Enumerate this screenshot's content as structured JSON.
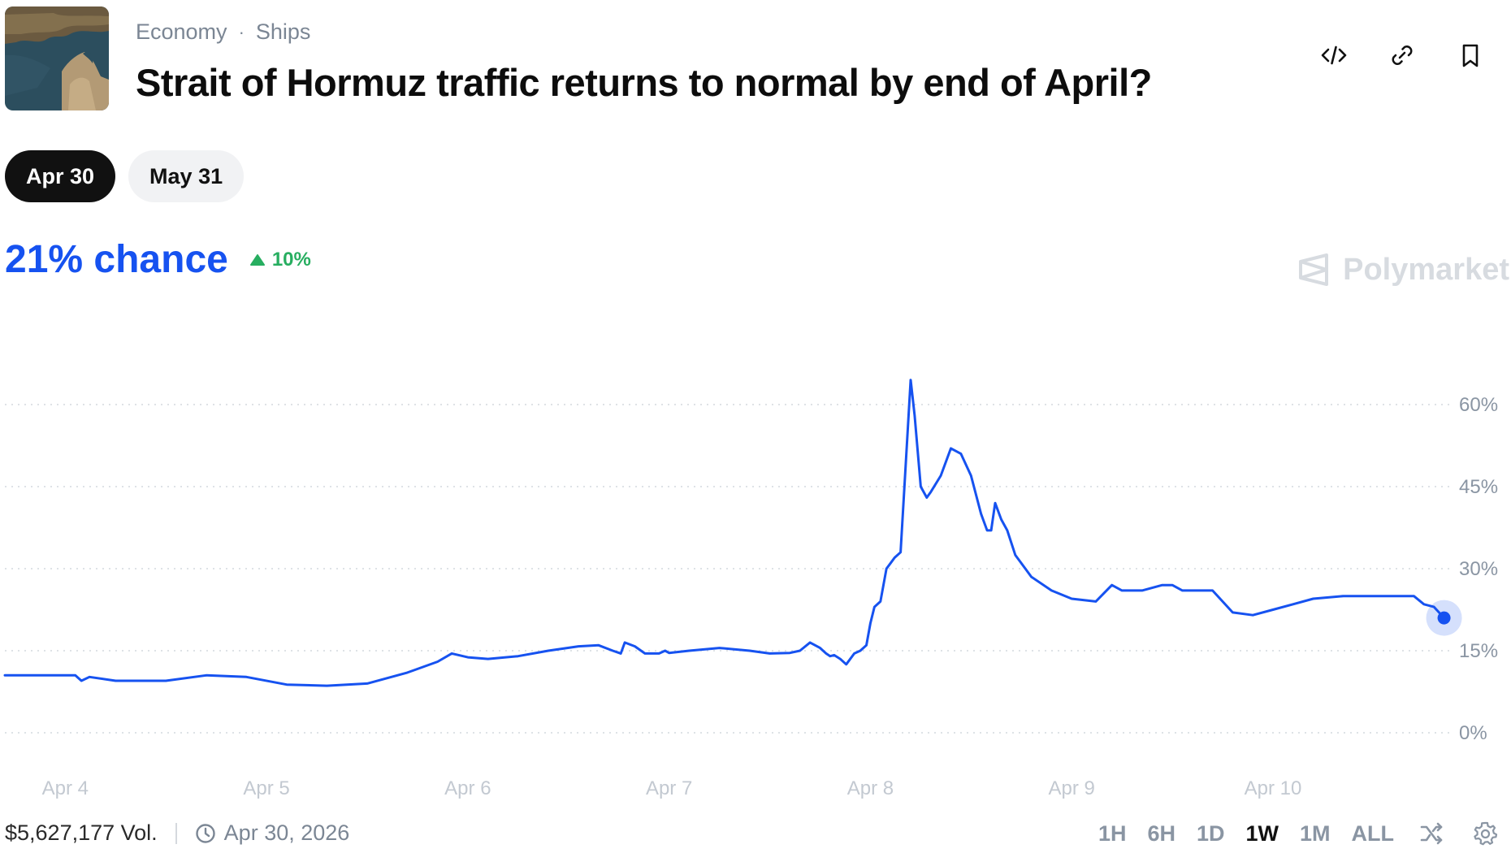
{
  "header": {
    "breadcrumb": [
      "Economy",
      "Ships"
    ],
    "breadcrumb_separator": "·",
    "title": "Strait of Hormuz traffic returns to normal by end of April?",
    "thumbnail_icon": "strait-satellite-image"
  },
  "top_actions": [
    {
      "name": "embed-code-icon"
    },
    {
      "name": "link-icon"
    },
    {
      "name": "bookmark-icon"
    }
  ],
  "date_pills": [
    {
      "label": "Apr 30",
      "active": true
    },
    {
      "label": "May 31",
      "active": false
    }
  ],
  "chance": {
    "text": "21% chance",
    "change": "10%",
    "change_direction": "up",
    "accent_color": "#1652f0",
    "change_color": "#27ae60"
  },
  "brand": "Polymarket",
  "chart_data": {
    "type": "line",
    "x_tick_labels": [
      "Apr 4",
      "Apr 5",
      "Apr 6",
      "Apr 7",
      "Apr 8",
      "Apr 9",
      "Apr 10"
    ],
    "y_tick_labels": [
      "60%",
      "45%",
      "30%",
      "15%",
      "0%"
    ],
    "ylim": [
      0,
      60
    ],
    "grid": true,
    "line_color": "#1652f0",
    "x": [
      3.7,
      4.0,
      4.02,
      4.05,
      4.08,
      4.12,
      4.25,
      4.5,
      4.7,
      4.9,
      5.1,
      5.3,
      5.5,
      5.7,
      5.85,
      5.92,
      6.0,
      6.1,
      6.25,
      6.4,
      6.55,
      6.65,
      6.72,
      6.76,
      6.78,
      6.83,
      6.88,
      6.95,
      6.98,
      7.0,
      7.1,
      7.25,
      7.4,
      7.5,
      7.6,
      7.65,
      7.7,
      7.75,
      7.78,
      7.8,
      7.82,
      7.85,
      7.88,
      7.92,
      7.95,
      7.98,
      8.0,
      8.02,
      8.05,
      8.08,
      8.1,
      8.12,
      8.15,
      8.2,
      8.22,
      8.25,
      8.28,
      8.3,
      8.35,
      8.4,
      8.45,
      8.5,
      8.55,
      8.58,
      8.6,
      8.62,
      8.65,
      8.68,
      8.72,
      8.75,
      8.8,
      8.9,
      9.0,
      9.12,
      9.2,
      9.25,
      9.27,
      9.3,
      9.35,
      9.45,
      9.5,
      9.55,
      9.7,
      9.8,
      9.9,
      10.0,
      10.1,
      10.2,
      10.35,
      10.55,
      10.7,
      10.75,
      10.8,
      10.85
    ],
    "y": [
      10.5,
      10.5,
      10.5,
      10.5,
      9.5,
      10.2,
      9.5,
      9.5,
      10.5,
      10.2,
      8.8,
      8.6,
      9.0,
      11.0,
      13.0,
      14.5,
      13.8,
      13.5,
      14.0,
      15.0,
      15.8,
      16.0,
      15.0,
      14.5,
      16.5,
      15.8,
      14.5,
      14.5,
      15.0,
      14.6,
      15.0,
      15.5,
      15.0,
      14.5,
      14.6,
      15.0,
      16.5,
      15.5,
      14.5,
      14.0,
      14.2,
      13.5,
      12.5,
      14.5,
      15.0,
      16.0,
      20.0,
      23.0,
      24.0,
      30.0,
      31.0,
      32.0,
      33.0,
      64.5,
      58.0,
      45.0,
      43.0,
      44.0,
      47.0,
      52.0,
      51.0,
      47.0,
      40.0,
      37.0,
      37.0,
      42.0,
      39.0,
      37.0,
      32.5,
      31.0,
      28.5,
      26.0,
      24.5,
      24.0,
      27.0,
      26.0,
      26.0,
      26.0,
      26.0,
      27.0,
      27.0,
      26.0,
      26.0,
      22.0,
      21.5,
      22.5,
      23.5,
      24.5,
      25.0,
      25.0,
      25.0,
      23.5,
      23.0,
      21.0
    ]
  },
  "footer": {
    "volume": "$5,627,177 Vol.",
    "end_date": "Apr 30, 2026"
  },
  "time_ranges": [
    {
      "label": "1H",
      "active": false
    },
    {
      "label": "6H",
      "active": false
    },
    {
      "label": "1D",
      "active": false
    },
    {
      "label": "1W",
      "active": true
    },
    {
      "label": "1M",
      "active": false
    },
    {
      "label": "ALL",
      "active": false
    }
  ]
}
